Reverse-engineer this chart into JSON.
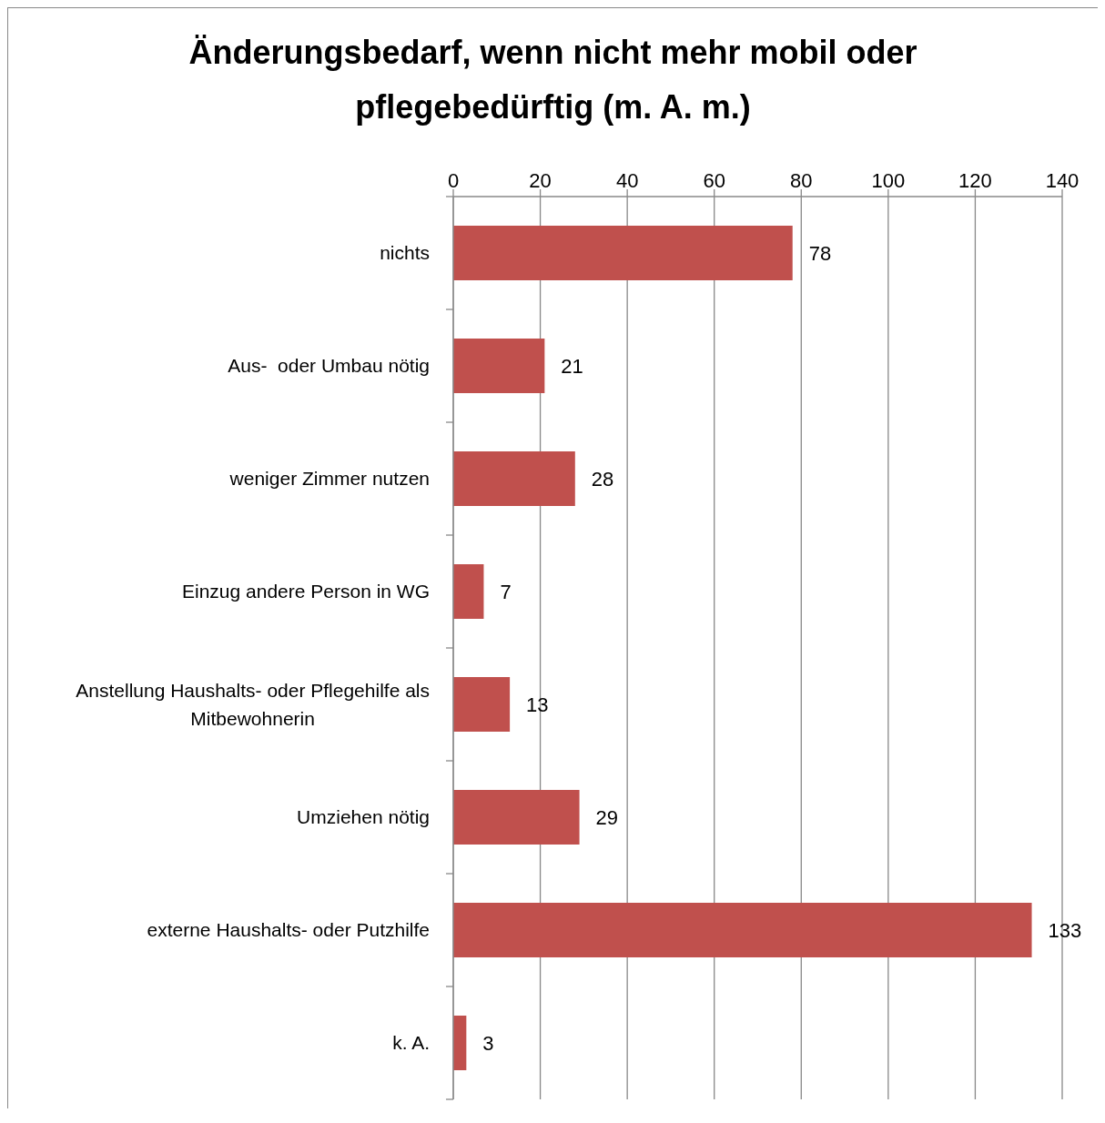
{
  "chart_data": {
    "type": "bar",
    "orientation": "horizontal",
    "title": "Änderungsbedarf, wenn nicht mehr mobil oder pflegebedürftig (m. A. m.)",
    "categories": [
      "nichts",
      "Aus-  oder Umbau nötig",
      "weniger Zimmer nutzen",
      "Einzug andere Person in WG",
      "Anstellung Haushalts- oder Pflegehilfe als Mitbewohnerin",
      "Umziehen nötig",
      "externe Haushalts- oder Putzhilfe",
      "k. A."
    ],
    "values": [
      78,
      21,
      28,
      7,
      13,
      29,
      133,
      3
    ],
    "color": "#c0504d",
    "xlim": [
      0,
      140
    ],
    "xticks": [
      0,
      20,
      40,
      60,
      80,
      100,
      120,
      140
    ],
    "grid": "x",
    "data_labels": true
  }
}
